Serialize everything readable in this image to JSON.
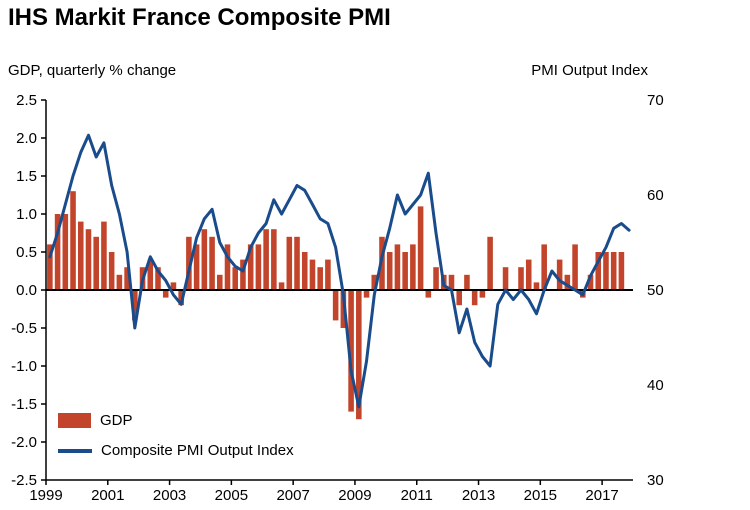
{
  "title": "IHS Markit France Composite PMI",
  "left_axis_caption": "GDP, quarterly % change",
  "right_axis_caption": "PMI Output  Index",
  "legend": {
    "gdp_label": "GDP",
    "pmi_label": "Composite PMI Output Index"
  },
  "colors": {
    "bar": "#c2442b",
    "line": "#1a4c8c",
    "text": "#000000",
    "axis": "#000000",
    "background": "#ffffff"
  },
  "chart_data": {
    "type": [
      "bar",
      "line"
    ],
    "title": "IHS Markit France Composite PMI",
    "left_axis_label": "GDP, quarterly % change",
    "right_axis_label": "PMI Output Index",
    "left_range": [
      -2.5,
      2.5
    ],
    "right_range": [
      30,
      70
    ],
    "x_range": [
      1999,
      2018
    ],
    "left_ticks": [
      2.5,
      2.0,
      1.5,
      1.0,
      0.5,
      0.0,
      -0.5,
      -1.0,
      -1.5,
      -2.0,
      -2.5
    ],
    "right_ticks": [
      70,
      60,
      50,
      40,
      30
    ],
    "x_tick_years": [
      1999,
      2001,
      2003,
      2005,
      2007,
      2009,
      2011,
      2013,
      2015,
      2017
    ],
    "grid": false,
    "legend_position": "bottom-left-inside",
    "series": [
      {
        "name": "GDP",
        "type": "bar",
        "axis": "left",
        "freq": "quarterly",
        "start_year": 1999,
        "values": [
          0.6,
          1.0,
          1.0,
          1.3,
          0.9,
          0.8,
          0.7,
          0.9,
          0.5,
          0.2,
          0.3,
          -0.4,
          0.3,
          0.4,
          0.3,
          -0.1,
          0.1,
          -0.2,
          0.7,
          0.6,
          0.8,
          0.7,
          0.2,
          0.6,
          0.3,
          0.4,
          0.6,
          0.6,
          0.8,
          0.8,
          0.1,
          0.7,
          0.7,
          0.5,
          0.4,
          0.3,
          0.4,
          -0.4,
          -0.5,
          -1.6,
          -1.7,
          -0.1,
          0.2,
          0.7,
          0.5,
          0.6,
          0.5,
          0.6,
          1.1,
          -0.1,
          0.3,
          0.2,
          0.2,
          -0.2,
          0.2,
          -0.2,
          -0.1,
          0.7,
          0.0,
          0.3,
          0.0,
          0.3,
          0.4,
          0.1,
          0.6,
          0.0,
          0.4,
          0.2,
          0.6,
          -0.1,
          0.2,
          0.5,
          0.5,
          0.5,
          0.5
        ]
      },
      {
        "name": "Composite PMI Output Index",
        "type": "line",
        "axis": "right",
        "freq": "quarterly",
        "start_year": 1999,
        "values": [
          53.5,
          56.0,
          59.0,
          62.0,
          64.5,
          66.3,
          64.0,
          65.5,
          61.0,
          58.0,
          54.0,
          46.0,
          51.0,
          53.5,
          52.0,
          51.0,
          49.5,
          48.5,
          52.0,
          55.5,
          57.5,
          58.5,
          55.0,
          53.5,
          52.5,
          52.0,
          54.5,
          56.0,
          57.0,
          59.5,
          58.0,
          59.5,
          61.0,
          60.5,
          59.0,
          57.5,
          57.0,
          54.5,
          49.5,
          41.5,
          37.7,
          42.5,
          49.5,
          53.5,
          56.5,
          60.0,
          58.0,
          59.0,
          60.0,
          62.3,
          56.0,
          50.5,
          50.0,
          45.5,
          48.0,
          44.5,
          43.0,
          42.0,
          48.5,
          50.0,
          49.0,
          50.0,
          49.0,
          47.5,
          50.0,
          52.0,
          51.0,
          50.5,
          50.0,
          49.5,
          51.5,
          53.0,
          54.5,
          56.5,
          57.0,
          56.3
        ]
      }
    ]
  }
}
